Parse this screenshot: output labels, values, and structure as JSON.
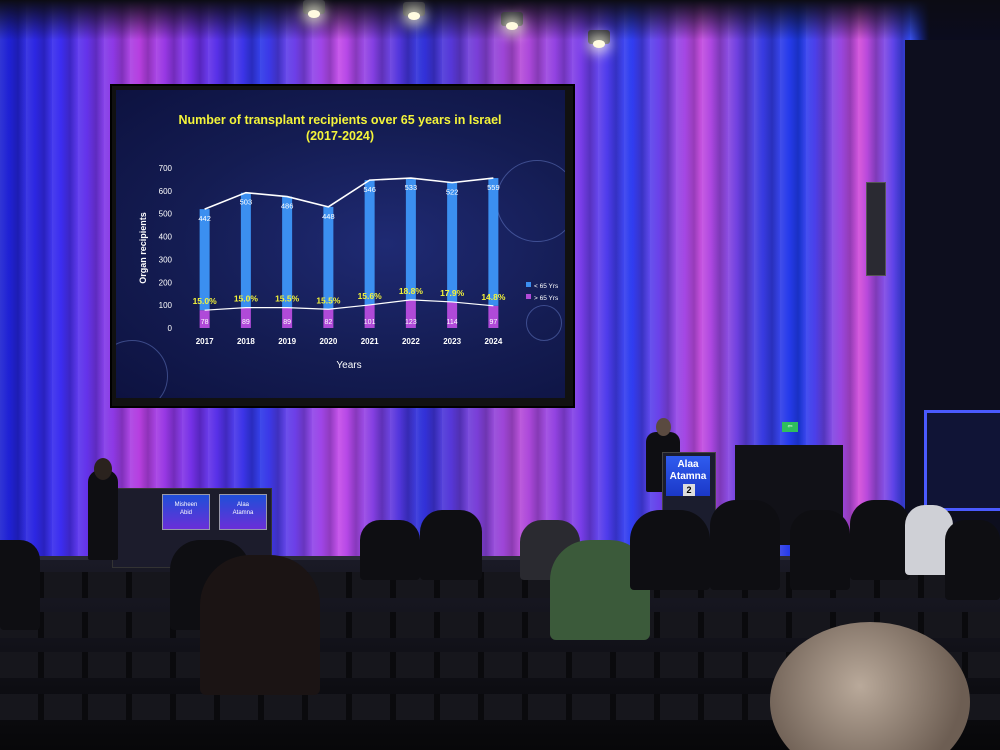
{
  "slide": {
    "title_line1": "Number of transplant recipients over 65 years in Israel",
    "title_line2": "(2017-2024)"
  },
  "chart_data": {
    "type": "bar",
    "title": "Number of transplant recipients over 65 years in Israel (2017-2024)",
    "xlabel": "Years",
    "ylabel": "Organ recipients",
    "ylim": [
      0,
      700
    ],
    "yticks": [
      "0",
      "100",
      "200",
      "300",
      "400",
      "500",
      "600",
      "700"
    ],
    "categories": [
      "2017",
      "2018",
      "2019",
      "2020",
      "2021",
      "2022",
      "2023",
      "2024"
    ],
    "series": [
      {
        "name": "< 65 Yrs",
        "color": "#3b8ff0",
        "values": [
          442,
          503,
          486,
          448,
          546,
          533,
          522,
          559
        ],
        "labels": [
          "442",
          "503",
          "486",
          "448",
          "546",
          "533",
          "522",
          "559"
        ]
      },
      {
        "name": "> 65 Yrs",
        "color": "#b04ad8",
        "values": [
          78,
          89,
          89,
          82,
          101,
          123,
          114,
          97
        ],
        "labels": [
          "78",
          "89",
          "89",
          "82",
          "101",
          "123",
          "114",
          "97"
        ]
      }
    ],
    "percent_labels": [
      "15.0%",
      "15.0%",
      "15.5%",
      "15.5%",
      "15.6%",
      "18.8%",
      "17.9%",
      "14.8%"
    ],
    "percent_color": "#f4f43a",
    "legend": [
      "< 65 Yrs",
      "> 65 Yrs"
    ],
    "legend_position": "right"
  },
  "stage": {
    "desk_name_1_line1": "Misheen",
    "desk_name_1_line2": "Abid",
    "desk_name_2_line1": "Alaa",
    "desk_name_2_line2": "Atamna",
    "podium_line1": "Alaa",
    "podium_line2": "Atamna",
    "podium_number": "2"
  }
}
